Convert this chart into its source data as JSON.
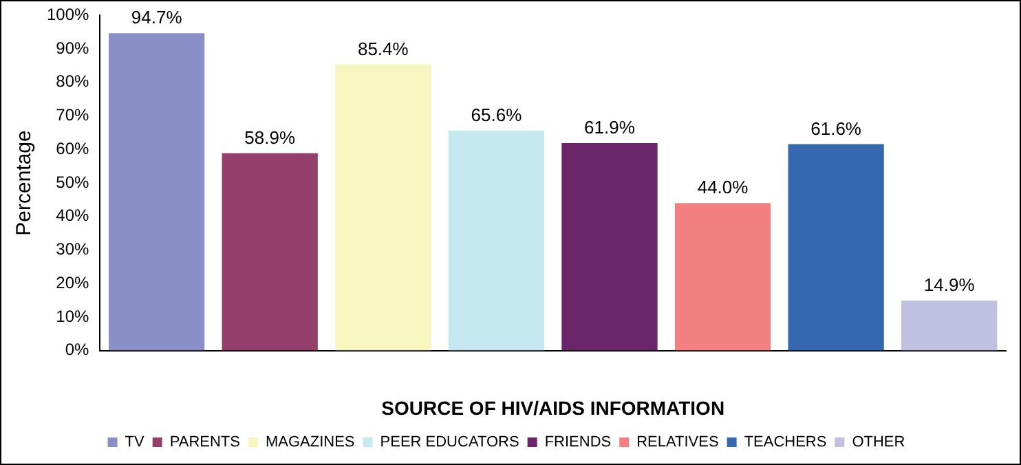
{
  "chart_data": {
    "type": "bar",
    "xlabel": "SOURCE OF HIV/AIDS INFORMATION",
    "ylabel": "Percentage",
    "categories": [
      null,
      null,
      null,
      null,
      null,
      null,
      null,
      null
    ],
    "series": [
      {
        "name": "TV",
        "color": "#8b8fc8",
        "values": [
          94.7,
          null,
          null,
          null,
          null,
          null,
          null,
          null
        ]
      },
      {
        "name": "PARENTS",
        "color": "#943f6b",
        "values": [
          null,
          58.9,
          null,
          null,
          null,
          null,
          null,
          null
        ]
      },
      {
        "name": "MAGAZINES",
        "color": "#f7f5c0",
        "values": [
          null,
          null,
          85.4,
          null,
          null,
          null,
          null,
          null
        ]
      },
      {
        "name": "PEER EDUCATORS",
        "color": "#c5e8f0",
        "values": [
          null,
          null,
          null,
          65.6,
          null,
          null,
          null,
          null
        ]
      },
      {
        "name": "FRIENDS",
        "color": "#6a2468",
        "values": [
          null,
          null,
          null,
          null,
          61.9,
          null,
          null,
          null
        ]
      },
      {
        "name": "RELATIVES",
        "color": "#f28080",
        "values": [
          null,
          null,
          null,
          null,
          null,
          44.0,
          null,
          null
        ]
      },
      {
        "name": "TEACHERS",
        "color": "#3468b0",
        "values": [
          null,
          null,
          null,
          null,
          null,
          null,
          61.6,
          null
        ]
      },
      {
        "name": "OTHER",
        "color": "#c0c0e0",
        "values": [
          null,
          null,
          null,
          null,
          null,
          null,
          null,
          14.9
        ]
      }
    ],
    "value_labels": [
      "94.7%",
      "58.9%",
      "85.4%",
      "65.6%",
      "61.9%",
      "44.0%",
      "61.6%",
      "14.9%"
    ],
    "ylim": [
      0,
      100
    ],
    "yticks": [
      {
        "value": 0,
        "label": "0%"
      },
      {
        "value": 10,
        "label": "10%"
      },
      {
        "value": 20,
        "label": "20%"
      },
      {
        "value": 30,
        "label": "30%"
      },
      {
        "value": 40,
        "label": "40%"
      },
      {
        "value": 50,
        "label": "50%"
      },
      {
        "value": 60,
        "label": "60%"
      },
      {
        "value": 70,
        "label": "70%"
      },
      {
        "value": 80,
        "label": "80%"
      },
      {
        "value": 90,
        "label": "90%"
      },
      {
        "value": 100,
        "label": "100%"
      }
    ],
    "grid": false,
    "legend": "bottom"
  }
}
